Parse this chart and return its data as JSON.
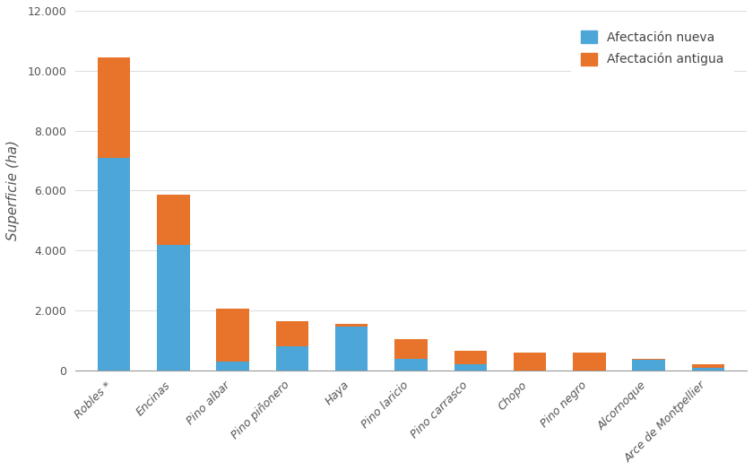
{
  "categories": [
    "Robles *",
    "Encinas",
    "Pino albar",
    "Pino piñonero",
    "Haya",
    "Pino laricio",
    "Pino carrasco",
    "Chopo",
    "Pino negro",
    "Alcornoque",
    "Arce de Montpellier"
  ],
  "nueva": [
    7100,
    4200,
    300,
    800,
    1450,
    400,
    200,
    0,
    0,
    350,
    100
  ],
  "antigua": [
    3350,
    1650,
    1750,
    850,
    100,
    650,
    450,
    600,
    600,
    50,
    100
  ],
  "color_nueva": "#4da6d8",
  "color_antigua": "#e8732a",
  "ylabel": "Superficie (ha)",
  "ylim": [
    0,
    12000
  ],
  "yticks": [
    0,
    2000,
    4000,
    6000,
    8000,
    10000,
    12000
  ],
  "legend_nueva": "Afectación nueva",
  "legend_antigua": "Afectación antigua",
  "bg_color": "#ffffff",
  "bar_width": 0.55,
  "tick_label_fontsize": 9,
  "ylabel_fontsize": 11
}
